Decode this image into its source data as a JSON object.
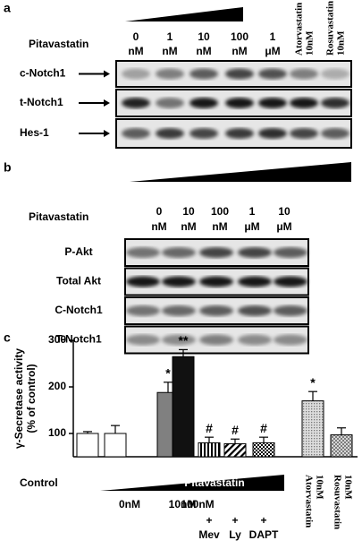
{
  "panel_a": {
    "label": "a",
    "treatment": "Pitavastatin",
    "doses": [
      [
        "0",
        "nM"
      ],
      [
        "1",
        "nM"
      ],
      [
        "10",
        "nM"
      ],
      [
        "100",
        "nM"
      ],
      [
        "1",
        "μM"
      ]
    ],
    "comparators": [
      [
        "Atorvastatin",
        "10nM"
      ],
      [
        "Rosuvastatin",
        "10nM"
      ]
    ],
    "rows": [
      "c-Notch1",
      "t-Notch1",
      "Hes-1"
    ]
  },
  "panel_b": {
    "label": "b",
    "treatment": "Pitavastatin",
    "doses": [
      [
        "0",
        "nM"
      ],
      [
        "10",
        "nM"
      ],
      [
        "100",
        "nM"
      ],
      [
        "1",
        "μM"
      ],
      [
        "10",
        "μM"
      ]
    ],
    "rows": [
      "P-Akt",
      "Total Akt",
      "C-Notch1",
      "T-Notch1"
    ]
  },
  "chart_data": {
    "type": "bar",
    "panel_label": "c",
    "ylabel": [
      "γ-Secretase activity",
      "(% of control)"
    ],
    "ylim": [
      50,
      300
    ],
    "yticks": [
      100,
      200,
      300
    ],
    "values": [
      100,
      100,
      188,
      265,
      80,
      78,
      80,
      170,
      97
    ],
    "errors": [
      4,
      17,
      22,
      15,
      12,
      10,
      12,
      20,
      15
    ],
    "annotations": [
      null,
      null,
      "*",
      "**",
      "#",
      "#",
      "#",
      "*",
      null
    ],
    "fills": [
      "#ffffff",
      "#ffffff",
      "#808080",
      "#111111",
      "vertical-stripes",
      "diagonal-stripes",
      "checker",
      "dots",
      "hatch"
    ],
    "control_label": "Control",
    "treatment_label": "Pitavastatin",
    "doses": [
      "0nM",
      "10nM",
      "100nM"
    ],
    "cotreatments": [
      [
        "+",
        "Mev"
      ],
      [
        "+",
        "Ly"
      ],
      [
        "+",
        "DAPT"
      ]
    ],
    "comparators": [
      [
        "Atorvastatin",
        "10nM"
      ],
      [
        "Rosuvastatin",
        "10nM"
      ]
    ]
  }
}
